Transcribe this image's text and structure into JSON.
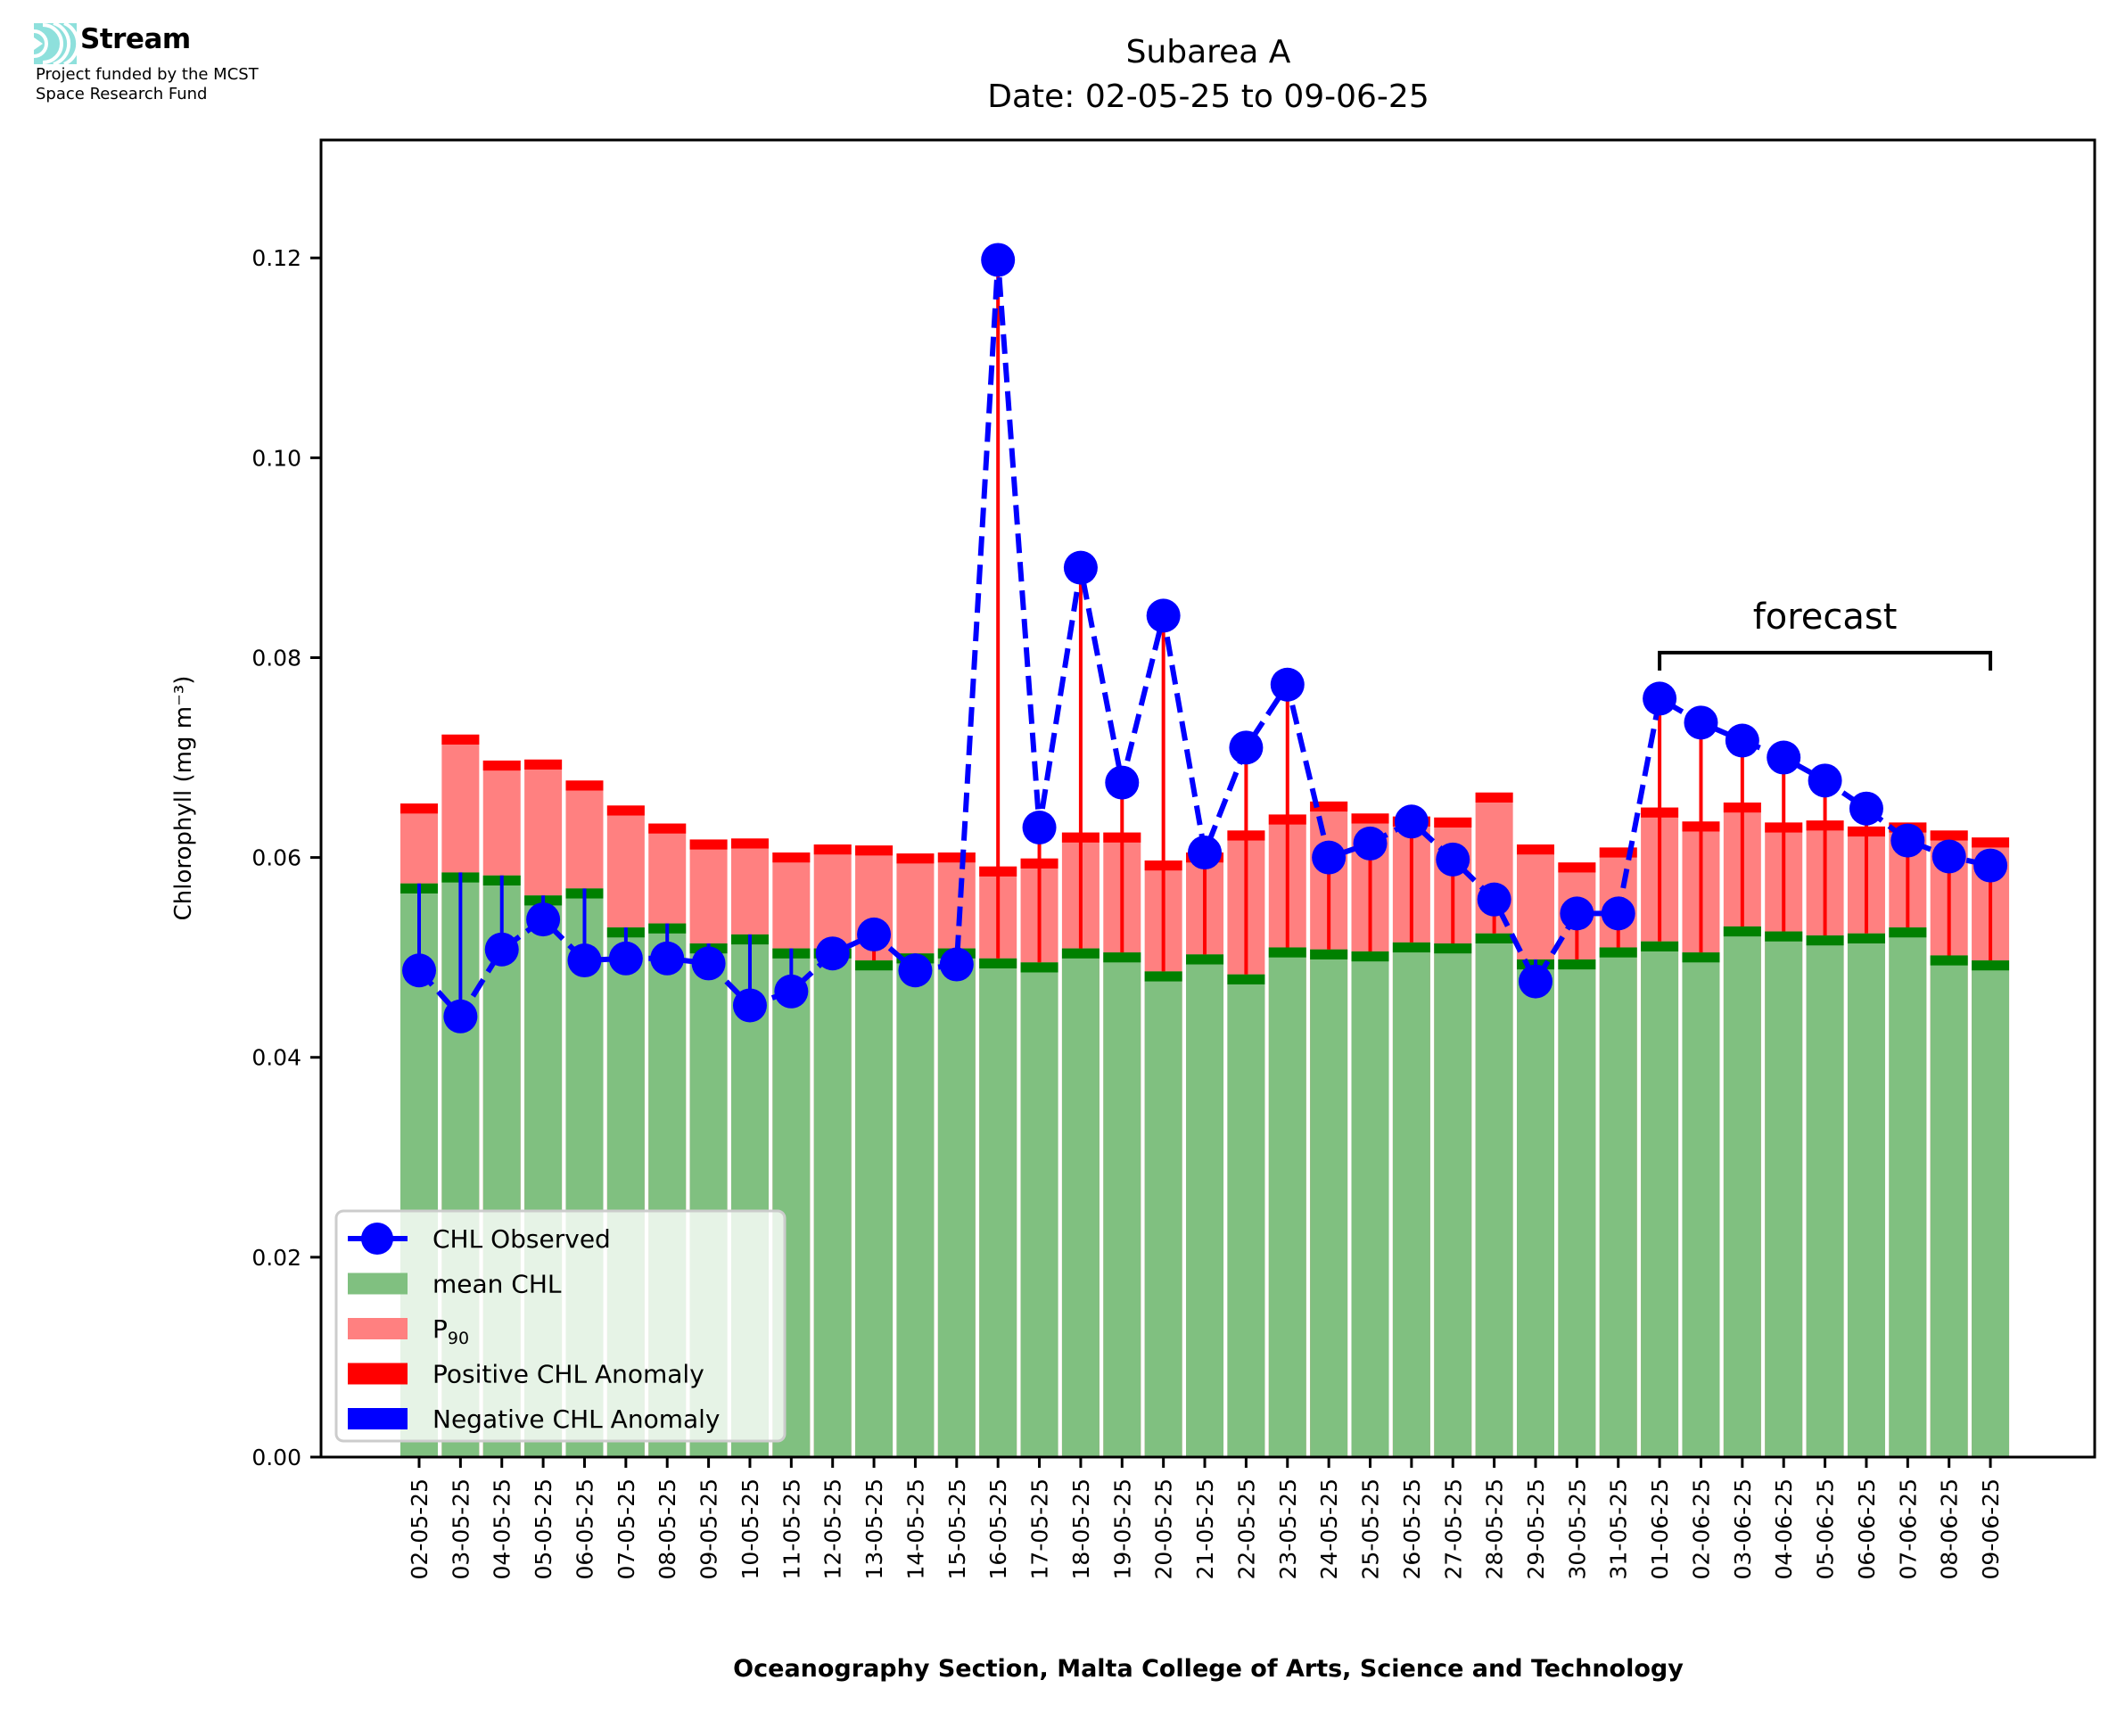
{
  "logo": {
    "name": "Stream",
    "subtitle_line1": "Project funded by the MCST",
    "subtitle_line2": "Space Research Fund",
    "color": "#8ee0dc"
  },
  "chart_data": {
    "type": "bar",
    "title": "Subarea A",
    "subtitle": "Date: 02-05-25 to 09-06-25",
    "xlabel": "Oceanography Section, Malta College of Arts, Science and Technology",
    "ylabel": "Chlorophyll (mg m⁻³)",
    "ylim": [
      0,
      0.1318
    ],
    "yticks": [
      0.0,
      0.02,
      0.04,
      0.06,
      0.08,
      0.1,
      0.12
    ],
    "ytick_labels": [
      "0.00",
      "0.02",
      "0.04",
      "0.06",
      "0.08",
      "0.10",
      "0.12"
    ],
    "grid": false,
    "legend_position": "lower-left",
    "colors": {
      "mean": "#80c080",
      "mean_marker": "#008000",
      "p90": "#ff8080",
      "p90_marker": "#ff0000",
      "observed": "#0000ff",
      "positive_anomaly": "#ff0000",
      "negative_anomaly": "#0000ff"
    },
    "legend": [
      {
        "label": "CHL Observed",
        "kind": "line-marker",
        "color": "#0000ff"
      },
      {
        "label": "mean CHL",
        "kind": "patch",
        "color": "#80c080"
      },
      {
        "label": "P",
        "sub": "90",
        "kind": "patch",
        "color": "#ff8080"
      },
      {
        "label": "Positive CHL Anomaly",
        "kind": "patch",
        "color": "#ff0000"
      },
      {
        "label": "Negative CHL Anomaly",
        "kind": "patch",
        "color": "#0000ff"
      }
    ],
    "annotation": {
      "text": "forecast",
      "from": "01-06-25",
      "to": "09-06-25",
      "y": 0.0805
    },
    "categories": [
      "02-05-25",
      "03-05-25",
      "04-05-25",
      "05-05-25",
      "06-05-25",
      "07-05-25",
      "08-05-25",
      "09-05-25",
      "10-05-25",
      "11-05-25",
      "12-05-25",
      "13-05-25",
      "14-05-25",
      "15-05-25",
      "16-05-25",
      "17-05-25",
      "18-05-25",
      "19-05-25",
      "20-05-25",
      "21-05-25",
      "22-05-25",
      "23-05-25",
      "24-05-25",
      "25-05-25",
      "26-05-25",
      "27-05-25",
      "28-05-25",
      "29-05-25",
      "30-05-25",
      "31-05-25",
      "01-06-25",
      "02-06-25",
      "03-06-25",
      "04-06-25",
      "05-06-25",
      "06-06-25",
      "07-06-25",
      "08-06-25",
      "09-06-25"
    ],
    "series": [
      {
        "name": "mean CHL",
        "values": [
          0.0564,
          0.0575,
          0.0572,
          0.0552,
          0.0559,
          0.052,
          0.0524,
          0.0504,
          0.0513,
          0.0499,
          0.0499,
          0.0487,
          0.0494,
          0.0499,
          0.0489,
          0.0485,
          0.0499,
          0.0495,
          0.0476,
          0.0493,
          0.0473,
          0.05,
          0.0498,
          0.0496,
          0.0505,
          0.0504,
          0.0514,
          0.0488,
          0.0488,
          0.05,
          0.0506,
          0.0495,
          0.0521,
          0.0516,
          0.0512,
          0.0514,
          0.052,
          0.0492,
          0.0487
        ]
      },
      {
        "name": "P90",
        "values": [
          0.0644,
          0.0713,
          0.0687,
          0.0688,
          0.0667,
          0.0642,
          0.0624,
          0.0608,
          0.0609,
          0.0595,
          0.0603,
          0.0602,
          0.0594,
          0.0595,
          0.0581,
          0.0589,
          0.0615,
          0.0615,
          0.0587,
          0.0595,
          0.0617,
          0.0633,
          0.0646,
          0.0634,
          0.0631,
          0.063,
          0.0655,
          0.0603,
          0.0585,
          0.06,
          0.064,
          0.0626,
          0.0645,
          0.0625,
          0.0627,
          0.0621,
          0.0625,
          0.0617,
          0.061
        ]
      },
      {
        "name": "CHL Observed",
        "values": [
          0.0487,
          0.0441,
          0.0508,
          0.0538,
          0.0497,
          0.0499,
          0.0499,
          0.0494,
          0.0452,
          0.0466,
          0.0504,
          0.0523,
          0.0487,
          0.0493,
          0.1198,
          0.063,
          0.089,
          0.0675,
          0.0842,
          0.0605,
          0.071,
          0.0773,
          0.06,
          0.0614,
          0.0636,
          0.0598,
          0.0558,
          0.0476,
          0.0544,
          0.0544,
          0.0759,
          0.0735,
          0.0717,
          0.07,
          0.0677,
          0.0649,
          0.0617,
          0.0601,
          0.0592
        ]
      }
    ]
  }
}
